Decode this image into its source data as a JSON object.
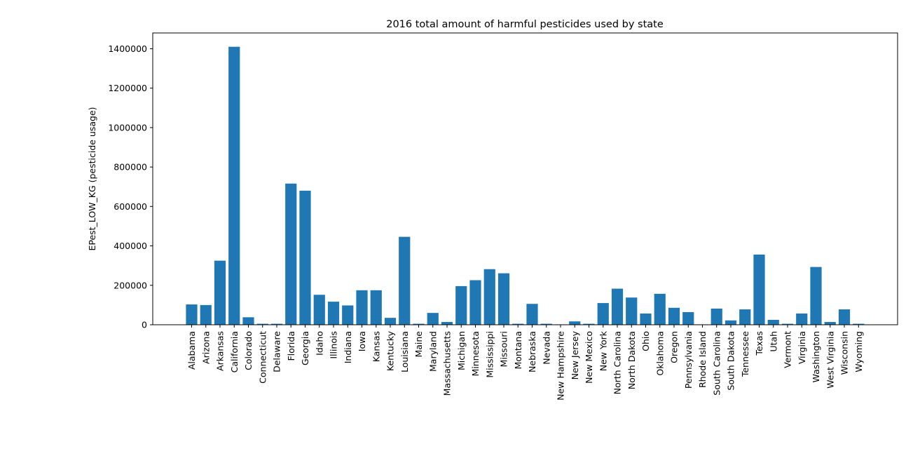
{
  "chart_data": {
    "type": "bar",
    "title": "2016 total amount of harmful pesticides used by state",
    "xlabel": "",
    "ylabel": "EPest_LOW_KG (pesticide usage)",
    "ylim": [
      0,
      1480000
    ],
    "yticks": [
      0,
      200000,
      400000,
      600000,
      800000,
      1000000,
      1200000,
      1400000
    ],
    "ytick_labels": [
      "0",
      "200000",
      "400000",
      "600000",
      "800000",
      "1000000",
      "1200000",
      "1400000"
    ],
    "bar_color": "#1f77b4",
    "grid": false,
    "categories": [
      "Alabama",
      "Arizona",
      "Arkansas",
      "California",
      "Colorado",
      "Connecticut",
      "Delaware",
      "Florida",
      "Georgia",
      "Idaho",
      "Illinois",
      "Indiana",
      "Iowa",
      "Kansas",
      "Kentucky",
      "Louisiana",
      "Maine",
      "Maryland",
      "Massachusetts",
      "Michigan",
      "Minnesota",
      "Mississippi",
      "Missouri",
      "Montana",
      "Nebraska",
      "Nevada",
      "New Hampshire",
      "New Jersey",
      "New Mexico",
      "New York",
      "North Carolina",
      "North Dakota",
      "Ohio",
      "Oklahoma",
      "Oregon",
      "Pennsylvania",
      "Rhode Island",
      "South Carolina",
      "South Dakota",
      "Tennessee",
      "Texas",
      "Utah",
      "Vermont",
      "Virginia",
      "Washington",
      "West Virginia",
      "Wisconsin",
      "Wyoming"
    ],
    "values": [
      103000,
      100000,
      325000,
      1410000,
      38000,
      5000,
      5000,
      716000,
      680000,
      152000,
      117000,
      98000,
      175000,
      175000,
      35000,
      446000,
      5000,
      60000,
      14000,
      196000,
      226000,
      282000,
      261000,
      5000,
      106000,
      5000,
      2000,
      17000,
      5000,
      110000,
      183000,
      138000,
      57000,
      157000,
      86000,
      64000,
      2000,
      82000,
      22000,
      78000,
      356000,
      25000,
      5000,
      57000,
      293000,
      14000,
      78000,
      5000
    ]
  }
}
